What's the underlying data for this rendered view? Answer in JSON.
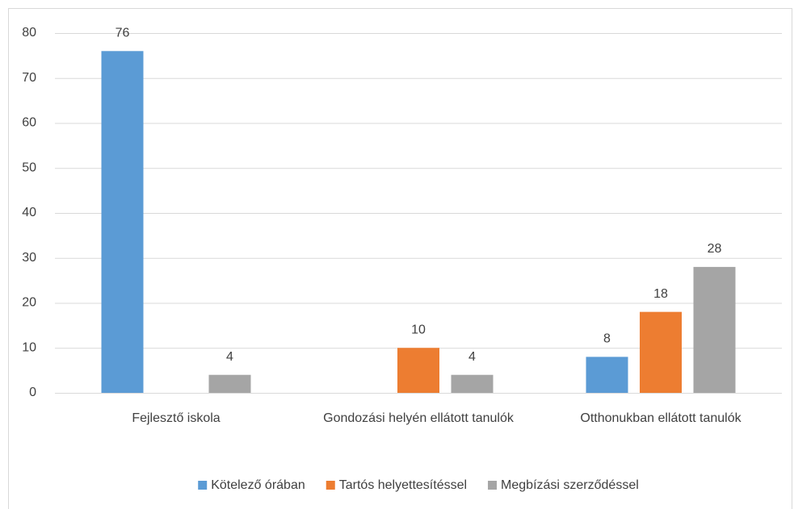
{
  "chart_data": {
    "type": "bar",
    "categories": [
      "Fejlesztő iskola",
      "Gondozási helyén ellátott tanulók",
      "Otthonukban ellátott tanulók"
    ],
    "series": [
      {
        "name": "Kötelező órában",
        "color": "#5b9bd5",
        "values": [
          76,
          null,
          8
        ]
      },
      {
        "name": "Tartós helyettesítéssel",
        "color": "#ed7d31",
        "values": [
          null,
          10,
          18
        ]
      },
      {
        "name": "Megbízási szerződéssel",
        "color": "#a5a5a5",
        "values": [
          4,
          4,
          28
        ]
      }
    ],
    "ylim": [
      0,
      80
    ],
    "yticks": [
      0,
      10,
      20,
      30,
      40,
      50,
      60,
      70,
      80
    ],
    "grid": true,
    "legend": "bottom"
  }
}
